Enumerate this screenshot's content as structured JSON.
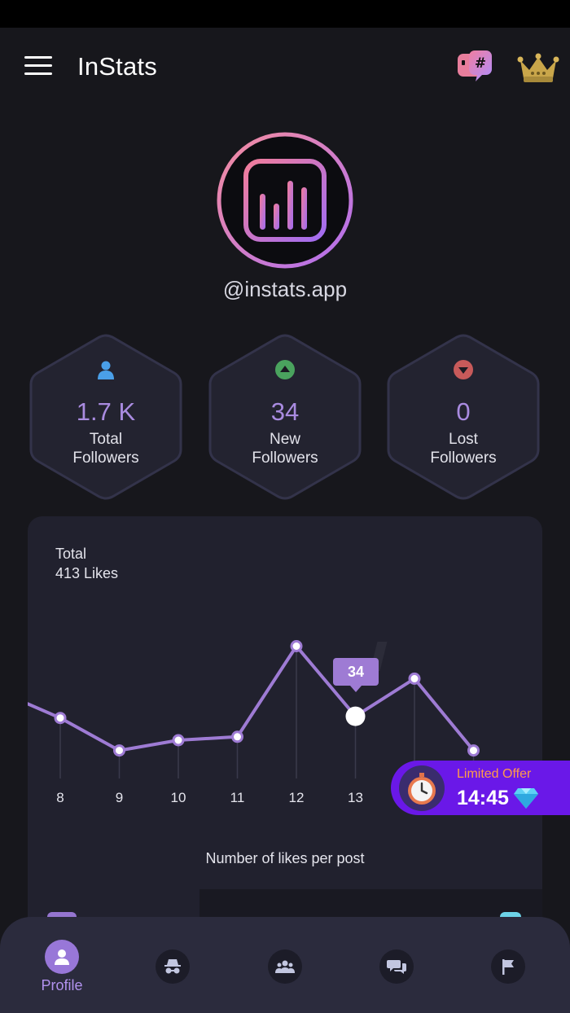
{
  "app": {
    "title": "InStats"
  },
  "profile": {
    "username": "@instats.app"
  },
  "stats": [
    {
      "value": "1.7 K",
      "line1": "Total",
      "line2": "Followers",
      "icon": "user-icon"
    },
    {
      "value": "34",
      "line1": "New",
      "line2": "Followers",
      "icon": "arrow-up-icon"
    },
    {
      "value": "0",
      "line1": "Lost",
      "line2": "Followers",
      "icon": "arrow-down-icon"
    }
  ],
  "likes_card": {
    "total_label": "Total",
    "likes_label": "413 Likes",
    "caption": "Number of likes per post",
    "tooltip": "34"
  },
  "chart_data": {
    "type": "line",
    "x_ticks": [
      "8",
      "9",
      "10",
      "11",
      "12",
      "13"
    ],
    "selected_x": 13,
    "selected_value": 34,
    "points": [
      {
        "x": 7,
        "y": 48
      },
      {
        "x": 8,
        "y": 33
      },
      {
        "x": 9,
        "y": 14
      },
      {
        "x": 10,
        "y": 20
      },
      {
        "x": 11,
        "y": 22
      },
      {
        "x": 12,
        "y": 75
      },
      {
        "x": 13,
        "y": 34
      },
      {
        "x": 14,
        "y": 56
      },
      {
        "x": 15,
        "y": 14
      }
    ],
    "color": "#9e7bd4"
  },
  "offer": {
    "title": "Limited Offer",
    "time": "14:45"
  },
  "nav": {
    "items": [
      {
        "label": "Profile",
        "icon": "profile-icon",
        "active": true
      },
      {
        "label": "",
        "icon": "spy-icon"
      },
      {
        "label": "",
        "icon": "group-icon"
      },
      {
        "label": "",
        "icon": "chat-icon"
      },
      {
        "label": "",
        "icon": "flag-icon"
      }
    ]
  },
  "colors": {
    "accent": "#9e7bd4",
    "background": "#17171c",
    "card": "#21212e",
    "offer": "#6a18e8",
    "offer_title": "#ff9c4a"
  }
}
